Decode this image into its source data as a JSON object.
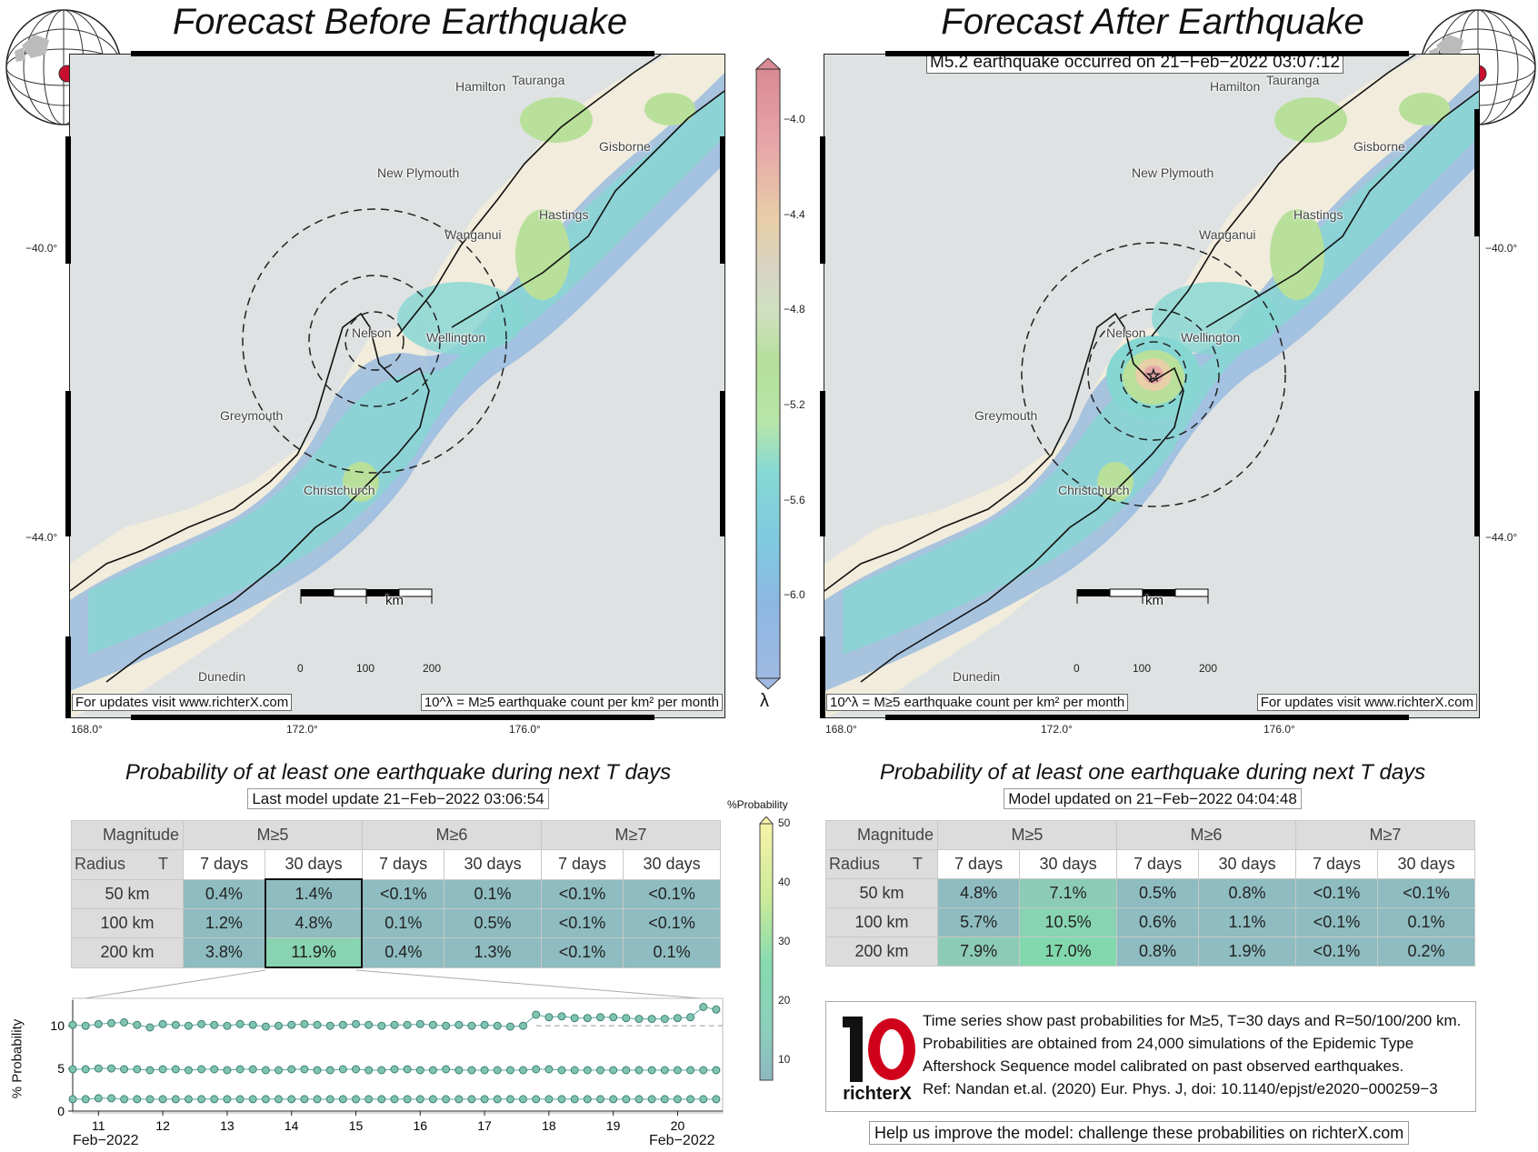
{
  "left": {
    "title": "Forecast Before Earthquake",
    "map_note_left": "For updates visit www.richterX.com",
    "map_note_right": "10^λ = M≥5 earthquake count per km² per month",
    "prob_title": "Probability of at least one earthquake during next T days",
    "prob_subtitle": "Last model update 21−Feb−2022 03:06:54",
    "table": {
      "header_magnitude": "Magnitude",
      "header_radius": "Radius",
      "header_T": "T",
      "mag_groups": [
        "M≥5",
        "M≥6",
        "M≥7"
      ],
      "periods": [
        "7 days",
        "30 days",
        "7 days",
        "30 days",
        "7 days",
        "30 days"
      ],
      "rows": [
        {
          "radius": "50 km",
          "values": [
            "0.4%",
            "1.4%",
            "<0.1%",
            "0.1%",
            "<0.1%",
            "<0.1%"
          ],
          "pct": [
            0.4,
            1.4,
            0.05,
            0.1,
            0.05,
            0.05
          ]
        },
        {
          "radius": "100 km",
          "values": [
            "1.2%",
            "4.8%",
            "0.1%",
            "0.5%",
            "<0.1%",
            "<0.1%"
          ],
          "pct": [
            1.2,
            4.8,
            0.1,
            0.5,
            0.05,
            0.05
          ]
        },
        {
          "radius": "200 km",
          "values": [
            "3.8%",
            "11.9%",
            "0.4%",
            "1.3%",
            "<0.1%",
            "0.1%"
          ],
          "pct": [
            3.8,
            11.9,
            0.4,
            1.3,
            0.05,
            0.1
          ]
        }
      ]
    }
  },
  "right": {
    "title": "Forecast After Earthquake",
    "event_label": "M5.2 earthquake occurred on 21−Feb−2022 03:07:12",
    "map_note_left": "10^λ = M≥5 earthquake count per km² per month",
    "map_note_right": "For updates visit www.richterX.com",
    "prob_title": "Probability of at least one earthquake during next T days",
    "prob_subtitle": "Model updated on 21−Feb−2022 04:04:48",
    "table": {
      "header_magnitude": "Magnitude",
      "header_radius": "Radius",
      "header_T": "T",
      "mag_groups": [
        "M≥5",
        "M≥6",
        "M≥7"
      ],
      "periods": [
        "7 days",
        "30 days",
        "7 days",
        "30 days",
        "7 days",
        "30 days"
      ],
      "rows": [
        {
          "radius": "50 km",
          "values": [
            "4.8%",
            "7.1%",
            "0.5%",
            "0.8%",
            "<0.1%",
            "<0.1%"
          ],
          "pct": [
            4.8,
            7.1,
            0.5,
            0.8,
            0.05,
            0.05
          ]
        },
        {
          "radius": "100 km",
          "values": [
            "5.7%",
            "10.5%",
            "0.6%",
            "1.1%",
            "<0.1%",
            "0.1%"
          ],
          "pct": [
            5.7,
            10.5,
            0.6,
            1.1,
            0.05,
            0.1
          ]
        },
        {
          "radius": "200 km",
          "values": [
            "7.9%",
            "17.0%",
            "0.8%",
            "1.9%",
            "<0.1%",
            "0.2%"
          ],
          "pct": [
            7.9,
            17.0,
            0.8,
            1.9,
            0.05,
            0.2
          ]
        }
      ]
    }
  },
  "cities": [
    "Hamilton",
    "Tauranga",
    "Gisborne",
    "New Plymouth",
    "Hastings",
    "Wanganui",
    "Nelson",
    "Wellington",
    "Greymouth",
    "Christchurch",
    "Dunedin"
  ],
  "map_axes": {
    "lon_ticks": [
      "168.0°",
      "172.0°",
      "176.0°"
    ],
    "lat_ticks": [
      "−40.0°",
      "−44.0°"
    ],
    "scale_unit": "km",
    "scale_ticks": [
      "0",
      "100",
      "200"
    ]
  },
  "lambda_colorbar": {
    "label": "λ",
    "ticks": [
      "−4.0",
      "−4.4",
      "−4.8",
      "−5.2",
      "−5.6",
      "−6.0"
    ]
  },
  "prob_colorbar": {
    "label": "%Probability",
    "ticks": [
      "50",
      "40",
      "30",
      "20",
      "10"
    ]
  },
  "info": {
    "line1": "Time series show past probabilities for M≥5, T=30 days and R=50/100/200 km.",
    "line2": "Probabilities are obtained from 24,000 simulations of the Epidemic Type",
    "line3": "Aftershock Sequence model calibrated on past observed earthquakes.",
    "line4": "Ref: Nandan et.al. (2020) Eur. Phys. J, doi: 10.1140/epjst/e2020−000259−3",
    "logo_text": "richterX"
  },
  "footer": "Help us improve the model: challenge these probabilities on richterX.com",
  "colors": {
    "low_prob": "#8fbfc4",
    "mid_prob": "#7ed6b0",
    "high_prob": "#f5eea0",
    "point_color": "#7fc4b0",
    "logo_red": "#d0021b"
  },
  "chart_data": {
    "type": "line",
    "ylabel": "% Probability",
    "ylim": [
      0,
      13
    ],
    "yticks": [
      0,
      5,
      10
    ],
    "xlabel_left": "Feb−2022",
    "xlabel_right": "Feb−2022",
    "x_tick_labels": [
      "11",
      "12",
      "13",
      "14",
      "15",
      "16",
      "17",
      "18",
      "19",
      "20"
    ],
    "x_range_days": [
      10.6,
      20.7
    ],
    "series": [
      {
        "x": [
          10.6,
          10.8,
          11.0,
          11.2,
          11.4,
          11.6,
          11.8,
          12.0,
          12.2,
          12.4,
          12.6,
          12.8,
          13.0,
          13.2,
          13.4,
          13.6,
          13.8,
          14.0,
          14.2,
          14.4,
          14.6,
          14.8,
          15.0,
          15.2,
          15.4,
          15.6,
          15.8,
          16.0,
          16.2,
          16.4,
          16.6,
          16.8,
          17.0,
          17.2,
          17.4,
          17.6,
          17.8,
          18.0,
          18.2,
          18.4,
          18.6,
          18.8,
          19.0,
          19.2,
          19.4,
          19.6,
          19.8,
          20.0,
          20.2,
          20.4,
          20.6
        ],
        "values": [
          10.1,
          10.0,
          10.2,
          10.3,
          10.4,
          10.1,
          9.8,
          10.2,
          10.1,
          10.0,
          10.2,
          10.1,
          10.0,
          10.2,
          10.1,
          9.9,
          10.0,
          10.1,
          10.2,
          10.1,
          10.0,
          10.1,
          10.2,
          10.1,
          10.0,
          10.1,
          10.1,
          10.2,
          10.1,
          10.0,
          10.1,
          10.0,
          10.1,
          10.0,
          9.9,
          10.0,
          11.3,
          11.0,
          11.1,
          10.9,
          10.9,
          11.0,
          11.0,
          10.9,
          10.8,
          10.8,
          10.8,
          10.9,
          11.0,
          12.2,
          11.9
        ]
      },
      {
        "x": [
          10.6,
          10.8,
          11.0,
          11.2,
          11.4,
          11.6,
          11.8,
          12.0,
          12.2,
          12.4,
          12.6,
          12.8,
          13.0,
          13.2,
          13.4,
          13.6,
          13.8,
          14.0,
          14.2,
          14.4,
          14.6,
          14.8,
          15.0,
          15.2,
          15.4,
          15.6,
          15.8,
          16.0,
          16.2,
          16.4,
          16.6,
          16.8,
          17.0,
          17.2,
          17.4,
          17.6,
          17.8,
          18.0,
          18.2,
          18.4,
          18.6,
          18.8,
          19.0,
          19.2,
          19.4,
          19.6,
          19.8,
          20.0,
          20.2,
          20.4,
          20.6
        ],
        "values": [
          4.9,
          4.9,
          5.0,
          5.0,
          4.9,
          4.9,
          4.8,
          4.9,
          4.9,
          4.8,
          4.9,
          4.9,
          4.8,
          4.9,
          4.9,
          4.8,
          4.8,
          4.9,
          4.9,
          4.8,
          4.8,
          4.9,
          4.9,
          4.8,
          4.8,
          4.9,
          4.9,
          4.8,
          4.8,
          4.9,
          4.8,
          4.8,
          4.8,
          4.8,
          4.8,
          4.8,
          4.9,
          4.9,
          4.8,
          4.8,
          4.8,
          4.8,
          4.8,
          4.8,
          4.8,
          4.8,
          4.8,
          4.8,
          4.8,
          4.8,
          4.8
        ]
      },
      {
        "x": [
          10.6,
          10.8,
          11.0,
          11.2,
          11.4,
          11.6,
          11.8,
          12.0,
          12.2,
          12.4,
          12.6,
          12.8,
          13.0,
          13.2,
          13.4,
          13.6,
          13.8,
          14.0,
          14.2,
          14.4,
          14.6,
          14.8,
          15.0,
          15.2,
          15.4,
          15.6,
          15.8,
          16.0,
          16.2,
          16.4,
          16.6,
          16.8,
          17.0,
          17.2,
          17.4,
          17.6,
          17.8,
          18.0,
          18.2,
          18.4,
          18.6,
          18.8,
          19.0,
          19.2,
          19.4,
          19.6,
          19.8,
          20.0,
          20.2,
          20.4,
          20.6
        ],
        "values": [
          1.4,
          1.4,
          1.5,
          1.5,
          1.4,
          1.4,
          1.4,
          1.4,
          1.4,
          1.4,
          1.4,
          1.4,
          1.4,
          1.4,
          1.4,
          1.4,
          1.4,
          1.4,
          1.4,
          1.4,
          1.4,
          1.4,
          1.4,
          1.4,
          1.4,
          1.4,
          1.4,
          1.4,
          1.4,
          1.4,
          1.4,
          1.4,
          1.4,
          1.4,
          1.4,
          1.4,
          1.4,
          1.4,
          1.4,
          1.4,
          1.4,
          1.4,
          1.4,
          1.4,
          1.4,
          1.4,
          1.4,
          1.4,
          1.4,
          1.4,
          1.4
        ]
      }
    ],
    "reference_line": {
      "value": 10.0,
      "from_day": 17.8
    }
  }
}
